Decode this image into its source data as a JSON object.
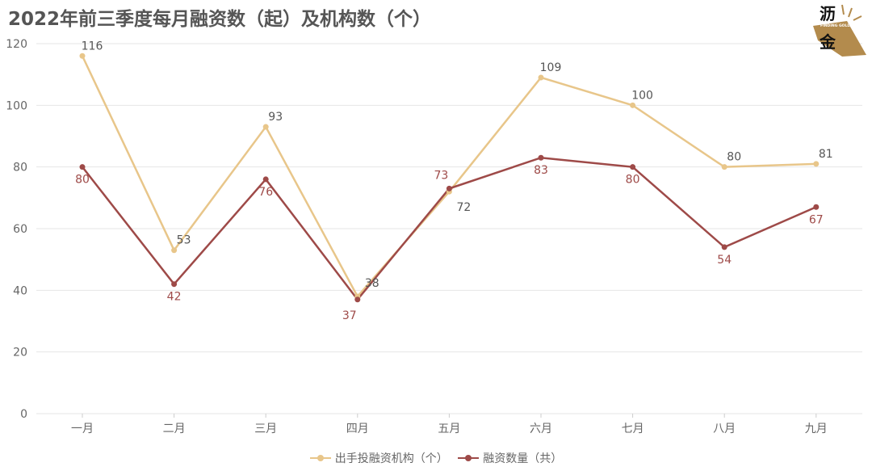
{
  "chart_data": {
    "type": "line",
    "title": "2022年前三季度每月融资数（起）及机构数（个）",
    "categories": [
      "一月",
      "二月",
      "三月",
      "四月",
      "五月",
      "六月",
      "七月",
      "八月",
      "九月"
    ],
    "series": [
      {
        "name": "出手投融资机构（个）",
        "color": "#e8c68a",
        "label_color": "#555555",
        "values": [
          116,
          53,
          93,
          38,
          72,
          109,
          100,
          80,
          81
        ]
      },
      {
        "name": "融资数量（共）",
        "color": "#9e4a48",
        "label_color": "#9e4a48",
        "values": [
          80,
          42,
          76,
          37,
          73,
          83,
          80,
          54,
          67
        ]
      }
    ],
    "ylim": [
      0,
      120
    ],
    "yticks": [
      0,
      20,
      40,
      60,
      80,
      100,
      120
    ],
    "grid": true,
    "legend": "bottom"
  },
  "logo": {
    "text_main": "沥金",
    "text_sub": "FINDING GOLD"
  }
}
